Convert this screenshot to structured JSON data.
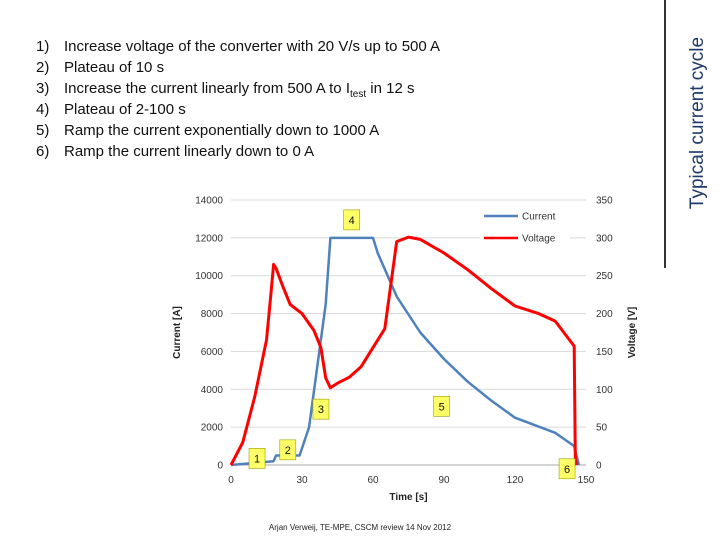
{
  "side_title": "Typical current cycle",
  "steps": [
    {
      "num": "1)",
      "text": "Increase voltage of the converter with 20 V/s up to 500 A",
      "sub": "",
      "suffix": ""
    },
    {
      "num": "2)",
      "text": "Plateau of 10 s",
      "sub": "",
      "suffix": ""
    },
    {
      "num": "3)",
      "text": "Increase the current linearly from 500 A to I",
      "sub": "test",
      "suffix": " in 12 s"
    },
    {
      "num": "4)",
      "text": "Plateau of 2-100 s",
      "sub": "",
      "suffix": ""
    },
    {
      "num": "5)",
      "text": "Ramp the current exponentially down to 1000 A",
      "sub": "",
      "suffix": ""
    },
    {
      "num": "6)",
      "text": "Ramp the current linearly down to 0 A",
      "sub": "",
      "suffix": ""
    }
  ],
  "footer": "Arjan Verweij, TE-MPE, CSCM review 14 Nov 2012",
  "chart_data": {
    "type": "line",
    "xlabel": "Time [s]",
    "ylabel": "Current [A]",
    "y2label": "Voltage [V]",
    "xlim": [
      0,
      150
    ],
    "ylim": [
      0,
      14000
    ],
    "y2lim": [
      0,
      350
    ],
    "xticks": [
      0,
      30,
      60,
      90,
      120,
      150
    ],
    "yticks": [
      0,
      2000,
      4000,
      6000,
      8000,
      10000,
      12000,
      14000
    ],
    "y2ticks": [
      0,
      50,
      100,
      150,
      200,
      250,
      300,
      350
    ],
    "grid": true,
    "legend_position": "top-right",
    "series": [
      {
        "name": "Current",
        "axis": "left",
        "color": "#4f81bd",
        "x": [
          0,
          18,
          19,
          29,
          33,
          40,
          42,
          60,
          62,
          70,
          80,
          90,
          100,
          110,
          120,
          137,
          145,
          147
        ],
        "y": [
          0,
          200,
          500,
          500,
          2000,
          8500,
          12000,
          12000,
          11200,
          8900,
          7000,
          5600,
          4400,
          3400,
          2500,
          1700,
          1000,
          0
        ]
      },
      {
        "name": "Voltage",
        "axis": "right",
        "color": "#ff0000",
        "x": [
          0,
          5,
          10,
          15,
          17,
          18,
          19,
          22,
          25,
          30,
          35,
          38,
          40,
          42,
          45,
          50,
          55,
          60,
          65,
          70,
          75,
          80,
          90,
          100,
          110,
          120,
          130,
          137,
          145,
          145.5,
          146
        ],
        "y": [
          0,
          30,
          90,
          165,
          230,
          265,
          260,
          235,
          212,
          200,
          178,
          155,
          115,
          102,
          108,
          116,
          130,
          155,
          180,
          295,
          301,
          298,
          280,
          258,
          233,
          210,
          200,
          190,
          157,
          10,
          0
        ]
      }
    ],
    "annotations": [
      {
        "label": "1",
        "x": 11,
        "y": 350
      },
      {
        "label": "2",
        "x": 24,
        "y": 800
      },
      {
        "label": "3",
        "x": 38,
        "y": 2950
      },
      {
        "label": "4",
        "x": 51,
        "y": 12950
      },
      {
        "label": "5",
        "x": 89,
        "y": 3100
      },
      {
        "label": "6",
        "x": 142,
        "y": -200
      }
    ]
  }
}
